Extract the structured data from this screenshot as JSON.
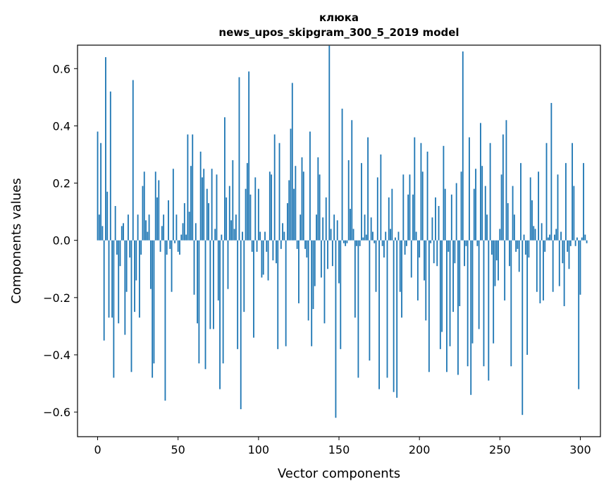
{
  "chart_data": {
    "type": "bar",
    "title_line1": "клюка",
    "title_line2": "news_upos_skipgram_300_5_2019 model",
    "xlabel": "Vector components",
    "ylabel": "Components values",
    "xlim": [
      -12.5,
      312.5
    ],
    "ylim": [
      -0.686,
      0.682
    ],
    "xticks": [
      0,
      50,
      100,
      150,
      200,
      250,
      300
    ],
    "yticks": [
      -0.6,
      -0.4,
      -0.2,
      0.0,
      0.2,
      0.4,
      0.6
    ],
    "ytick_labels": [
      "−0.6",
      "−0.4",
      "−0.2",
      "0.0",
      "0.2",
      "0.4",
      "0.6"
    ],
    "bar_color": "#1f77b4",
    "values": [
      0.38,
      0.09,
      0.34,
      0.05,
      -0.35,
      0.64,
      0.17,
      -0.27,
      0.52,
      -0.27,
      -0.48,
      0.12,
      -0.05,
      -0.29,
      -0.09,
      0.05,
      0.06,
      -0.33,
      -0.18,
      0.09,
      -0.06,
      -0.46,
      0.56,
      -0.25,
      -0.14,
      0.09,
      -0.27,
      -0.05,
      0.19,
      0.24,
      0.07,
      0.03,
      0.09,
      -0.17,
      -0.48,
      -0.43,
      0.24,
      0.15,
      0.21,
      -0.04,
      0.05,
      0.09,
      -0.56,
      -0.05,
      0.14,
      -0.03,
      -0.18,
      0.25,
      -0.01,
      0.09,
      -0.04,
      -0.05,
      0.02,
      0.06,
      0.13,
      0.02,
      0.37,
      0.1,
      0.26,
      0.37,
      -0.19,
      0.06,
      -0.29,
      -0.43,
      0.31,
      0.22,
      0.25,
      -0.45,
      0.18,
      0.13,
      -0.31,
      0.25,
      -0.31,
      0.04,
      0.23,
      -0.21,
      -0.52,
      0.02,
      -0.43,
      0.43,
      0.15,
      -0.17,
      0.19,
      0.07,
      0.28,
      0.04,
      0.09,
      -0.38,
      0.57,
      -0.59,
      0.03,
      -0.25,
      0.18,
      0.27,
      0.59,
      0.16,
      -0.04,
      -0.34,
      0.22,
      -0.04,
      0.18,
      0.03,
      -0.13,
      -0.12,
      0.03,
      -0.04,
      -0.14,
      0.24,
      0.23,
      -0.07,
      0.37,
      -0.08,
      -0.38,
      0.34,
      -0.03,
      0.06,
      0.03,
      -0.37,
      0.13,
      0.21,
      0.39,
      0.55,
      0.18,
      0.26,
      -0.03,
      -0.22,
      0.09,
      0.29,
      0.24,
      -0.03,
      -0.06,
      -0.28,
      0.38,
      -0.37,
      -0.24,
      -0.16,
      0.09,
      0.29,
      0.23,
      -0.13,
      0.08,
      -0.29,
      0.15,
      -0.1,
      0.68,
      0.04,
      -0.09,
      0.09,
      -0.62,
      0.07,
      -0.15,
      -0.38,
      0.46,
      -0.01,
      -0.02,
      -0.01,
      0.28,
      0.11,
      0.42,
      0.04,
      -0.27,
      -0.02,
      -0.48,
      -0.02,
      0.27,
      0.01,
      0.09,
      0.02,
      0.36,
      -0.42,
      0.08,
      0.03,
      -0.01,
      -0.18,
      0.22,
      -0.52,
      0.3,
      -0.02,
      -0.06,
      0.03,
      -0.48,
      0.15,
      0.04,
      0.18,
      -0.53,
      0.01,
      -0.55,
      0.03,
      -0.18,
      -0.27,
      0.23,
      -0.05,
      -0.02,
      0.16,
      0.23,
      -0.13,
      0.16,
      0.36,
      0.03,
      -0.21,
      -0.06,
      0.34,
      0.24,
      -0.14,
      -0.28,
      0.31,
      -0.46,
      -0.01,
      0.08,
      -0.08,
      0.15,
      -0.09,
      0.12,
      -0.38,
      -0.32,
      0.33,
      0.18,
      -0.46,
      -0.04,
      -0.37,
      0.16,
      -0.25,
      -0.08,
      0.2,
      -0.47,
      -0.23,
      0.24,
      0.66,
      -0.09,
      -0.02,
      -0.44,
      0.36,
      -0.54,
      -0.36,
      0.18,
      0.25,
      -0.02,
      -0.31,
      0.41,
      0.26,
      -0.44,
      0.19,
      0.09,
      -0.49,
      0.34,
      -0.05,
      -0.36,
      -0.16,
      -0.07,
      -0.14,
      0.04,
      0.23,
      0.37,
      -0.21,
      0.42,
      0.13,
      -0.09,
      -0.44,
      0.19,
      0.09,
      -0.04,
      -0.03,
      -0.11,
      0.27,
      -0.61,
      0.02,
      -0.05,
      -0.4,
      -0.06,
      0.22,
      0.14,
      0.05,
      0.04,
      -0.18,
      0.24,
      -0.22,
      0.06,
      -0.21,
      -0.04,
      0.34,
      0.01,
      0.02,
      0.48,
      -0.18,
      0.02,
      0.04,
      0.23,
      -0.16,
      0.03,
      -0.08,
      -0.23,
      0.27,
      -0.04,
      -0.1,
      -0.02,
      0.34,
      0.19,
      -0.02,
      0.01,
      -0.52,
      -0.19,
      0.01,
      0.27,
      0.02,
      -0.01
    ]
  }
}
